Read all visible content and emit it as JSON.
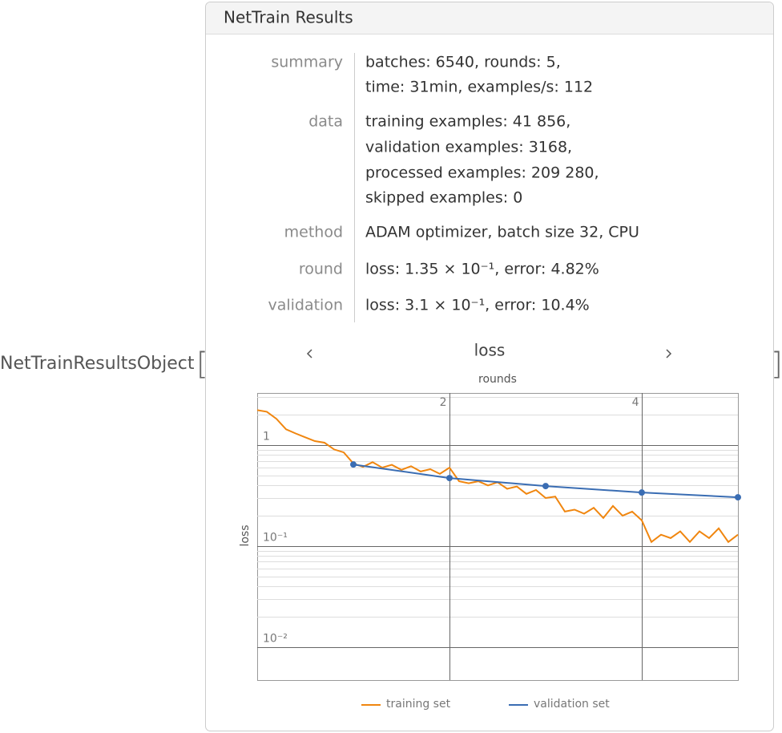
{
  "wrapper": {
    "head": "NetTrainResultsObject",
    "open": "[",
    "close": "]"
  },
  "panel": {
    "title": "NetTrain Results",
    "rows": [
      {
        "label": "summary",
        "lines": [
          "batches: 6540, rounds: 5,",
          "time: 31min, examples/s: 112"
        ]
      },
      {
        "label": "data",
        "lines": [
          "training examples: 41 856,",
          "validation examples: 3168,",
          "processed examples: 209 280,",
          "skipped examples: 0"
        ]
      },
      {
        "label": "method",
        "lines": [
          "ADAM optimizer, batch size 32, CPU"
        ]
      },
      {
        "label": "round",
        "lines": [
          "loss: 1.35 × 10⁻¹, error: 4.82%"
        ]
      },
      {
        "label": "validation",
        "lines": [
          "loss: 3.1 × 10⁻¹, error: 10.4%"
        ]
      }
    ]
  },
  "chart_data": {
    "type": "line",
    "title": "loss",
    "xlabel": "rounds",
    "ylabel": "loss",
    "xlim": [
      0,
      5
    ],
    "xticks": [
      2,
      4
    ],
    "ylim": [
      0.0047,
      3.3
    ],
    "log_y": true,
    "yticks": [
      {
        "value": 1,
        "label": "1"
      },
      {
        "value": 0.1,
        "label": "10⁻¹"
      },
      {
        "value": 0.01,
        "label": "10⁻²"
      }
    ],
    "grid": true,
    "legend": "bottom",
    "series": [
      {
        "name": "training set",
        "color": "#f0860f",
        "markers": false,
        "x": [
          0,
          0.1,
          0.2,
          0.3,
          0.4,
          0.5,
          0.6,
          0.7,
          0.8,
          0.9,
          1,
          1.1,
          1.2,
          1.3,
          1.4,
          1.5,
          1.6,
          1.7,
          1.8,
          1.9,
          2,
          2.1,
          2.2,
          2.3,
          2.4,
          2.5,
          2.6,
          2.7,
          2.8,
          2.9,
          3,
          3.1,
          3.2,
          3.3,
          3.4,
          3.5,
          3.6,
          3.7,
          3.8,
          3.9,
          4,
          4.1,
          4.2,
          4.3,
          4.4,
          4.5,
          4.6,
          4.7,
          4.8,
          4.9,
          5
        ],
        "values": [
          2.23,
          2.15,
          1.83,
          1.44,
          1.31,
          1.2,
          1.1,
          1.06,
          0.91,
          0.85,
          0.66,
          0.61,
          0.68,
          0.6,
          0.64,
          0.57,
          0.62,
          0.55,
          0.58,
          0.52,
          0.6,
          0.44,
          0.42,
          0.44,
          0.4,
          0.43,
          0.37,
          0.39,
          0.33,
          0.36,
          0.3,
          0.31,
          0.22,
          0.23,
          0.21,
          0.24,
          0.19,
          0.25,
          0.2,
          0.22,
          0.18,
          0.11,
          0.13,
          0.12,
          0.14,
          0.11,
          0.14,
          0.12,
          0.15,
          0.11,
          0.13
        ]
      },
      {
        "name": "validation set",
        "color": "#3a6db3",
        "markers": true,
        "x": [
          1,
          2,
          3,
          4,
          5
        ],
        "values": [
          0.645,
          0.473,
          0.394,
          0.34,
          0.305
        ]
      }
    ]
  }
}
